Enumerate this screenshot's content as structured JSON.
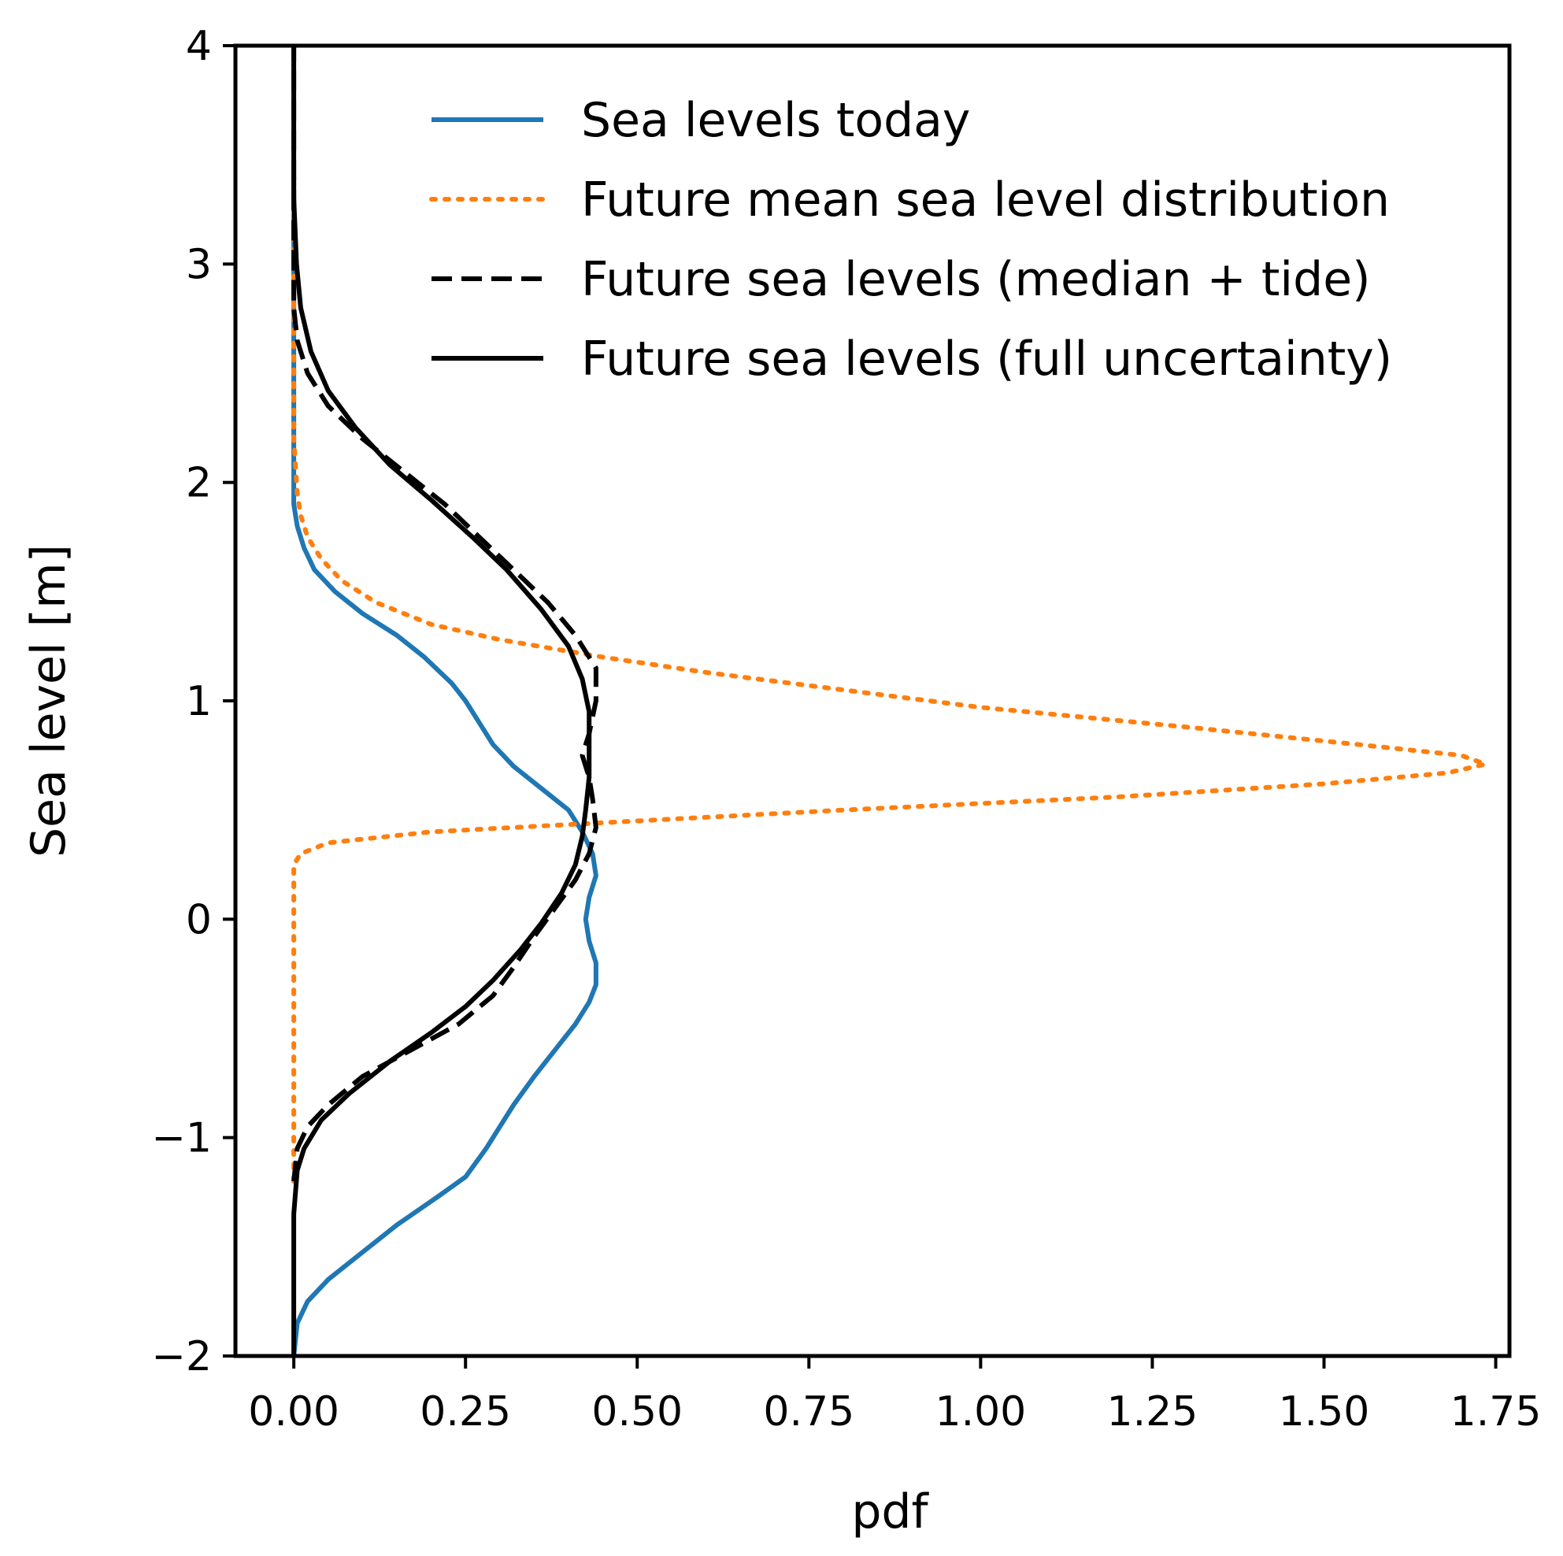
{
  "chart_data": {
    "type": "line",
    "orientation": "vertical-pdf",
    "xlabel": "pdf",
    "ylabel": "Sea level [m]",
    "xlim": [
      -0.085,
      1.77
    ],
    "ylim": [
      -2,
      4
    ],
    "xticks": [
      0.0,
      0.25,
      0.5,
      0.75,
      1.0,
      1.25,
      1.5,
      1.75
    ],
    "xtick_labels": [
      "0.00",
      "0.25",
      "0.50",
      "0.75",
      "1.00",
      "1.25",
      "1.50",
      "1.75"
    ],
    "yticks": [
      -2,
      -1,
      0,
      1,
      2,
      3,
      4
    ],
    "ytick_labels": [
      "−2",
      "−1",
      "0",
      "1",
      "2",
      "3",
      "4"
    ],
    "grid": false,
    "legend_position": "top-right",
    "series": [
      {
        "name": "Sea levels today",
        "color": "#1f77b4",
        "style": "solid",
        "points": [
          [
            0.0,
            -2.0
          ],
          [
            0.005,
            -1.85
          ],
          [
            0.02,
            -1.75
          ],
          [
            0.05,
            -1.65
          ],
          [
            0.09,
            -1.55
          ],
          [
            0.15,
            -1.4
          ],
          [
            0.21,
            -1.27
          ],
          [
            0.25,
            -1.18
          ],
          [
            0.28,
            -1.05
          ],
          [
            0.3,
            -0.95
          ],
          [
            0.32,
            -0.85
          ],
          [
            0.35,
            -0.72
          ],
          [
            0.38,
            -0.6
          ],
          [
            0.41,
            -0.48
          ],
          [
            0.43,
            -0.38
          ],
          [
            0.44,
            -0.3
          ],
          [
            0.44,
            -0.2
          ],
          [
            0.43,
            -0.1
          ],
          [
            0.425,
            0.0
          ],
          [
            0.43,
            0.1
          ],
          [
            0.44,
            0.2
          ],
          [
            0.435,
            0.3
          ],
          [
            0.42,
            0.4
          ],
          [
            0.4,
            0.5
          ],
          [
            0.36,
            0.6
          ],
          [
            0.32,
            0.7
          ],
          [
            0.29,
            0.8
          ],
          [
            0.27,
            0.9
          ],
          [
            0.25,
            1.0
          ],
          [
            0.23,
            1.08
          ],
          [
            0.19,
            1.2
          ],
          [
            0.15,
            1.3
          ],
          [
            0.1,
            1.4
          ],
          [
            0.06,
            1.5
          ],
          [
            0.03,
            1.6
          ],
          [
            0.015,
            1.7
          ],
          [
            0.005,
            1.8
          ],
          [
            0.0,
            1.9
          ],
          [
            0.0,
            2.5
          ],
          [
            0.0,
            3.4
          ]
        ]
      },
      {
        "name": "Future mean sea level distribution",
        "color": "#ff7f0e",
        "style": "dotted",
        "points": [
          [
            0.0,
            -1.2
          ],
          [
            0.0,
            0.25
          ],
          [
            0.01,
            0.3
          ],
          [
            0.05,
            0.35
          ],
          [
            0.2,
            0.4
          ],
          [
            0.5,
            0.45
          ],
          [
            0.8,
            0.5
          ],
          [
            1.2,
            0.56
          ],
          [
            1.5,
            0.62
          ],
          [
            1.68,
            0.67
          ],
          [
            1.735,
            0.71
          ],
          [
            1.7,
            0.75
          ],
          [
            1.55,
            0.8
          ],
          [
            1.3,
            0.88
          ],
          [
            1.0,
            0.97
          ],
          [
            0.75,
            1.07
          ],
          [
            0.6,
            1.13
          ],
          [
            0.45,
            1.2
          ],
          [
            0.3,
            1.28
          ],
          [
            0.2,
            1.35
          ],
          [
            0.12,
            1.45
          ],
          [
            0.07,
            1.55
          ],
          [
            0.04,
            1.65
          ],
          [
            0.02,
            1.75
          ],
          [
            0.01,
            1.85
          ],
          [
            0.005,
            1.95
          ],
          [
            0.0,
            2.2
          ],
          [
            0.0,
            3.4
          ]
        ]
      },
      {
        "name": "Future sea levels (median + tide)",
        "color": "#000000",
        "style": "dashed",
        "points": [
          [
            0.0,
            -1.2
          ],
          [
            0.005,
            -1.05
          ],
          [
            0.02,
            -0.95
          ],
          [
            0.05,
            -0.85
          ],
          [
            0.1,
            -0.72
          ],
          [
            0.17,
            -0.6
          ],
          [
            0.24,
            -0.48
          ],
          [
            0.29,
            -0.35
          ],
          [
            0.32,
            -0.22
          ],
          [
            0.35,
            -0.08
          ],
          [
            0.38,
            0.05
          ],
          [
            0.41,
            0.18
          ],
          [
            0.43,
            0.3
          ],
          [
            0.44,
            0.42
          ],
          [
            0.435,
            0.55
          ],
          [
            0.43,
            0.65
          ],
          [
            0.42,
            0.75
          ],
          [
            0.43,
            0.85
          ],
          [
            0.44,
            1.0
          ],
          [
            0.44,
            1.15
          ],
          [
            0.41,
            1.3
          ],
          [
            0.37,
            1.45
          ],
          [
            0.32,
            1.6
          ],
          [
            0.27,
            1.75
          ],
          [
            0.22,
            1.9
          ],
          [
            0.16,
            2.05
          ],
          [
            0.1,
            2.2
          ],
          [
            0.05,
            2.35
          ],
          [
            0.02,
            2.5
          ],
          [
            0.005,
            2.65
          ],
          [
            0.0,
            2.8
          ],
          [
            0.0,
            4.0
          ]
        ]
      },
      {
        "name": "Future sea levels (full uncertainty)",
        "color": "#000000",
        "style": "solid",
        "points": [
          [
            0.0,
            -2.0
          ],
          [
            0.0,
            -1.35
          ],
          [
            0.005,
            -1.15
          ],
          [
            0.015,
            -1.05
          ],
          [
            0.04,
            -0.92
          ],
          [
            0.08,
            -0.8
          ],
          [
            0.14,
            -0.65
          ],
          [
            0.2,
            -0.52
          ],
          [
            0.25,
            -0.4
          ],
          [
            0.29,
            -0.28
          ],
          [
            0.33,
            -0.14
          ],
          [
            0.36,
            -0.02
          ],
          [
            0.39,
            0.12
          ],
          [
            0.41,
            0.25
          ],
          [
            0.42,
            0.38
          ],
          [
            0.425,
            0.5
          ],
          [
            0.43,
            0.65
          ],
          [
            0.43,
            0.8
          ],
          [
            0.43,
            0.95
          ],
          [
            0.42,
            1.1
          ],
          [
            0.4,
            1.25
          ],
          [
            0.36,
            1.42
          ],
          [
            0.31,
            1.6
          ],
          [
            0.26,
            1.75
          ],
          [
            0.2,
            1.92
          ],
          [
            0.14,
            2.08
          ],
          [
            0.09,
            2.25
          ],
          [
            0.05,
            2.42
          ],
          [
            0.025,
            2.6
          ],
          [
            0.01,
            2.8
          ],
          [
            0.004,
            3.0
          ],
          [
            0.0,
            3.3
          ],
          [
            0.0,
            4.0
          ]
        ]
      }
    ]
  }
}
